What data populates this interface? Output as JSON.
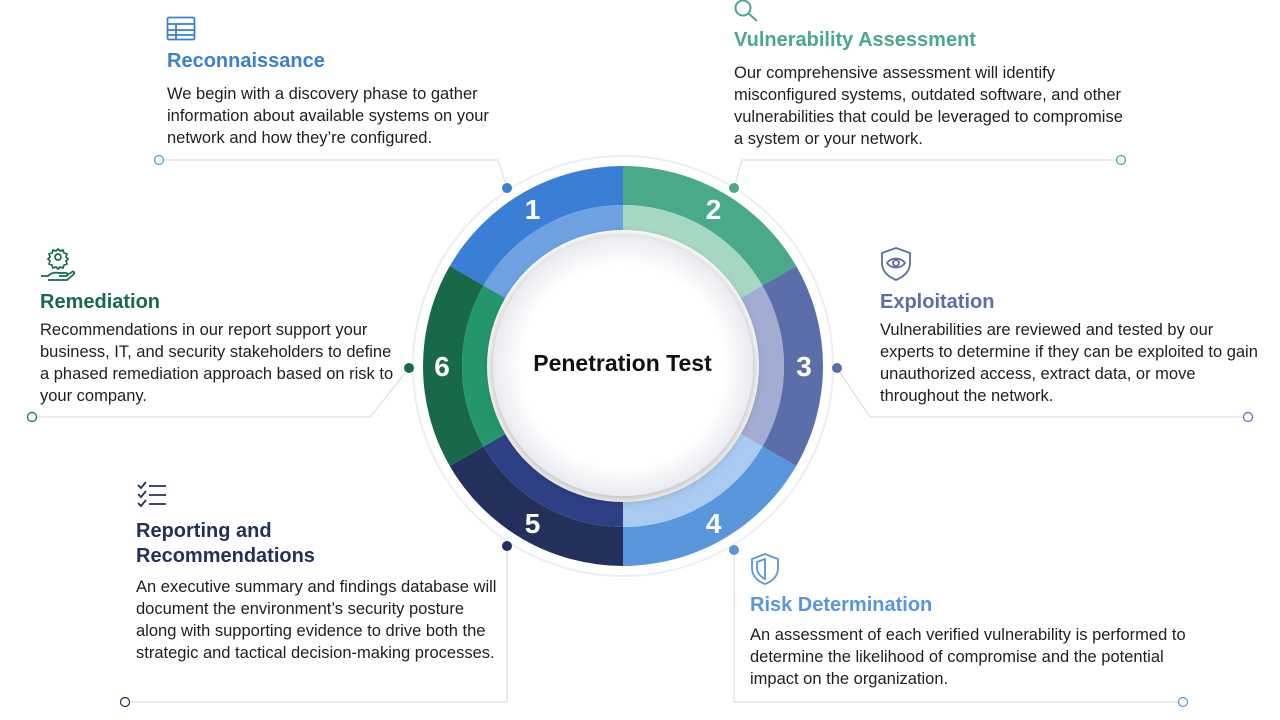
{
  "diagram": {
    "center_label": "Penetration Test",
    "stages": [
      {
        "number": "1",
        "title": "Reconnaissance",
        "icon": "table-icon",
        "color": "#3a7fd5",
        "description": "We begin with a discovery phase to gather information about available systems on your network and how they’re configured."
      },
      {
        "number": "2",
        "title": "Vulnerability Assessment",
        "icon": "search-icon",
        "color": "#4aa98b",
        "description": "Our comprehensive assessment will identify misconfigured systems, outdated software, and other vulnerabilities that could be leveraged to compromise a system or your network."
      },
      {
        "number": "3",
        "title": "Exploitation",
        "icon": "shield-eye-icon",
        "color": "#5b6ea9",
        "description": "Vulnerabilities are reviewed and tested by our experts to determine if they can be exploited to gain unauthorized access, extract data, or move throughout the network."
      },
      {
        "number": "4",
        "title": "Risk Determination",
        "icon": "shield-icon",
        "color": "#5a96dc",
        "description": "An assessment of each verified vulnerability is performed to determine the likelihood of compromise and the potential impact on the organization."
      },
      {
        "number": "5",
        "title": "Reporting and Recommendations",
        "icon": "checklist-icon",
        "color": "#24305c",
        "description": "An executive summary and findings database will document the environment’s security posture along with supporting evidence to drive both the strategic and tactical decision-making processes."
      },
      {
        "number": "6",
        "title": "Remediation",
        "icon": "gear-hand-icon",
        "color": "#17694a",
        "description": "Recommendations in our report support your business, IT, and security stakeholders to define a phased remediation approach based on risk to your company."
      }
    ]
  }
}
